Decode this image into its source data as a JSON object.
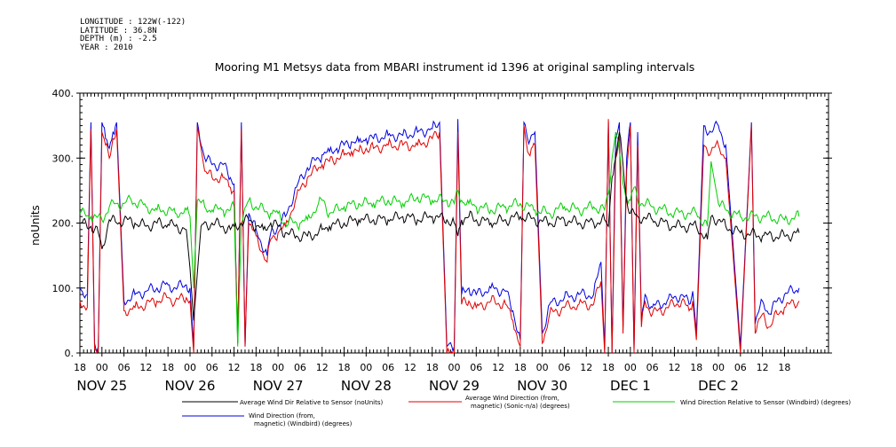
{
  "metadata": {
    "longitude": "LONGITUDE : 122W(-122)",
    "latitude": "LATITUDE : 36.8N",
    "depth": "DEPTH (m) : -2.5",
    "year": "YEAR : 2010"
  },
  "chart_data": {
    "type": "line",
    "title": "Mooring M1 Metsys data from MBARI instrument id 1396 at original sampling intervals",
    "ylabel": "noUnits",
    "ylim": [
      0,
      400
    ],
    "yticks": [
      "0.",
      "100.",
      "200.",
      "300.",
      "400."
    ],
    "yticks_values": [
      0,
      100,
      200,
      300,
      400
    ],
    "x_unit": "hours since Nov 25 00:00, 2010",
    "xlim": [
      -6,
      198
    ],
    "xtick_labels": [
      "18",
      "00",
      "06",
      "12",
      "18",
      "00",
      "06",
      "12",
      "18",
      "00",
      "06",
      "12",
      "18",
      "00",
      "06",
      "12",
      "18",
      "00",
      "06",
      "12",
      "18",
      "00",
      "06",
      "12",
      "18",
      "00",
      "06",
      "12",
      "18",
      "00",
      "06",
      "12",
      "18"
    ],
    "xtick_hours": [
      -6,
      0,
      6,
      12,
      18,
      24,
      30,
      36,
      42,
      48,
      54,
      60,
      66,
      72,
      78,
      84,
      90,
      96,
      102,
      108,
      114,
      120,
      126,
      132,
      138,
      144,
      150,
      156,
      162,
      168,
      174,
      180,
      186
    ],
    "date_labels": [
      {
        "text": "NOV 25",
        "hour": 0
      },
      {
        "text": "NOV 26",
        "hour": 24
      },
      {
        "text": "NOV 27",
        "hour": 48
      },
      {
        "text": "NOV 28",
        "hour": 72
      },
      {
        "text": "NOV 29",
        "hour": 96
      },
      {
        "text": "NOV 30",
        "hour": 120
      },
      {
        "text": "DEC  1",
        "hour": 144
      },
      {
        "text": "DEC  2",
        "hour": 168
      }
    ],
    "series": [
      {
        "name": "Average Wind Dir Relative to Sensor (noUnits)",
        "color": "#000000",
        "x": [
          -6,
          -3,
          -1,
          0,
          2,
          4,
          6,
          9,
          12,
          15,
          18,
          20,
          23,
          24,
          25,
          27,
          30,
          33,
          35,
          36,
          38,
          40,
          42,
          44,
          46,
          48,
          50,
          53,
          56,
          59,
          60,
          62,
          66,
          70,
          74,
          78,
          82,
          86,
          90,
          94,
          96,
          97,
          98,
          100,
          102,
          106,
          110,
          114,
          118,
          122,
          126,
          130,
          134,
          137,
          138,
          139,
          140,
          141,
          142,
          143,
          144,
          146,
          150,
          156,
          162,
          165,
          166,
          168,
          170,
          174,
          180,
          186,
          190
        ],
        "y": [
          200,
          195,
          185,
          160,
          205,
          200,
          205,
          200,
          195,
          200,
          198,
          195,
          190,
          130,
          50,
          195,
          200,
          195,
          190,
          195,
          200,
          205,
          195,
          190,
          200,
          195,
          185,
          180,
          180,
          185,
          190,
          195,
          200,
          205,
          205,
          205,
          210,
          205,
          210,
          205,
          200,
          180,
          205,
          210,
          205,
          200,
          205,
          210,
          205,
          200,
          205,
          200,
          200,
          205,
          195,
          270,
          300,
          340,
          290,
          235,
          215,
          210,
          205,
          195,
          195,
          175,
          210,
          205,
          195,
          185,
          180,
          180,
          185
        ]
      },
      {
        "name": "Average Wind Direction (from, magnetic) (Sonic-n/a) (degrees)",
        "color": "#e00000",
        "x": [
          -6,
          -4,
          -3,
          -2,
          -1,
          0,
          1,
          2,
          3,
          4,
          6,
          9,
          12,
          15,
          18,
          20,
          23,
          24,
          25,
          26,
          28,
          30,
          33,
          35,
          36,
          37,
          38,
          39,
          40,
          41,
          42,
          45,
          46,
          48,
          50,
          53,
          56,
          59,
          60,
          62,
          64,
          66,
          68,
          70,
          72,
          74,
          78,
          82,
          86,
          90,
          92,
          94,
          96,
          97,
          98,
          100,
          102,
          106,
          110,
          112,
          114,
          115,
          116,
          117,
          118,
          120,
          122,
          126,
          130,
          134,
          136,
          137,
          138,
          139,
          140,
          141,
          142,
          143,
          144,
          145,
          146,
          147,
          148,
          150,
          154,
          158,
          160,
          161,
          162,
          164,
          166,
          168,
          170,
          174,
          177,
          178,
          180,
          182,
          184,
          186,
          190
        ],
        "y": [
          80,
          70,
          345,
          5,
          5,
          340,
          320,
          300,
          330,
          345,
          65,
          70,
          75,
          80,
          85,
          80,
          85,
          80,
          0,
          350,
          280,
          270,
          270,
          255,
          250,
          20,
          345,
          10,
          200,
          190,
          180,
          140,
          175,
          185,
          195,
          240,
          270,
          285,
          290,
          295,
          300,
          305,
          310,
          310,
          315,
          315,
          320,
          320,
          320,
          330,
          340,
          0,
          0,
          340,
          75,
          80,
          70,
          80,
          75,
          50,
          10,
          350,
          310,
          315,
          320,
          15,
          60,
          70,
          75,
          75,
          110,
          0,
          360,
          0,
          300,
          340,
          30,
          280,
          350,
          0,
          320,
          40,
          80,
          60,
          70,
          80,
          65,
          80,
          20,
          320,
          310,
          320,
          300,
          0,
          350,
          30,
          60,
          40,
          60,
          70,
          80
        ]
      },
      {
        "name": "Wind Direction Relative to Sensor (Windbird) (degrees)",
        "color": "#00d000",
        "x": [
          -6,
          -3,
          0,
          2,
          4,
          6,
          8,
          10,
          12,
          15,
          18,
          20,
          23,
          24,
          25,
          26,
          28,
          30,
          33,
          35,
          36,
          37,
          38,
          40,
          42,
          46,
          48,
          50,
          54,
          56,
          59,
          60,
          62,
          66,
          70,
          74,
          78,
          82,
          86,
          90,
          94,
          96,
          97,
          98,
          100,
          102,
          106,
          110,
          114,
          118,
          122,
          126,
          130,
          134,
          137,
          138,
          139,
          140,
          141,
          142,
          143,
          144,
          145,
          146,
          150,
          156,
          162,
          165,
          166,
          168,
          170,
          174,
          180,
          186,
          190
        ],
        "y": [
          215,
          210,
          205,
          225,
          230,
          230,
          235,
          230,
          225,
          220,
          220,
          215,
          220,
          210,
          100,
          235,
          225,
          220,
          220,
          220,
          225,
          10,
          200,
          235,
          225,
          215,
          215,
          200,
          200,
          205,
          230,
          235,
          215,
          225,
          230,
          230,
          235,
          230,
          240,
          235,
          235,
          230,
          250,
          235,
          230,
          225,
          220,
          225,
          230,
          220,
          215,
          225,
          220,
          225,
          220,
          245,
          300,
          340,
          310,
          260,
          240,
          235,
          255,
          235,
          225,
          215,
          215,
          195,
          295,
          230,
          220,
          210,
          210,
          205,
          210
        ]
      },
      {
        "name": "Wind Direction (from, magnetic) (Windbird) (degrees)",
        "color": "#0000e0",
        "x": [
          -6,
          -4,
          -3,
          -2,
          -1,
          0,
          1,
          2,
          3,
          4,
          6,
          9,
          12,
          15,
          18,
          20,
          23,
          24,
          25,
          26,
          28,
          30,
          33,
          35,
          36,
          37,
          38,
          39,
          40,
          41,
          42,
          45,
          46,
          48,
          50,
          53,
          56,
          59,
          60,
          62,
          64,
          66,
          68,
          70,
          72,
          74,
          78,
          82,
          86,
          90,
          92,
          94,
          96,
          97,
          98,
          100,
          102,
          106,
          110,
          112,
          114,
          115,
          116,
          117,
          118,
          120,
          122,
          126,
          130,
          134,
          136,
          137,
          138,
          139,
          140,
          141,
          142,
          143,
          144,
          145,
          146,
          147,
          148,
          150,
          154,
          158,
          160,
          161,
          162,
          164,
          166,
          168,
          170,
          174,
          177,
          178,
          180,
          182,
          184,
          186,
          190
        ],
        "y": [
          100,
          90,
          355,
          15,
          10,
          355,
          330,
          315,
          340,
          355,
          80,
          90,
          95,
          100,
          105,
          100,
          105,
          100,
          10,
          355,
          300,
          290,
          290,
          270,
          260,
          15,
          355,
          10,
          215,
          200,
          190,
          150,
          185,
          195,
          210,
          255,
          285,
          300,
          305,
          310,
          315,
          320,
          325,
          325,
          330,
          330,
          335,
          335,
          340,
          345,
          355,
          10,
          10,
          360,
          90,
          100,
          90,
          100,
          95,
          65,
          20,
          355,
          330,
          335,
          340,
          30,
          75,
          85,
          90,
          90,
          140,
          5,
          355,
          5,
          330,
          355,
          40,
          300,
          355,
          5,
          340,
          50,
          90,
          70,
          80,
          90,
          75,
          95,
          30,
          350,
          340,
          350,
          320,
          10,
          355,
          45,
          80,
          60,
          80,
          90,
          100
        ]
      }
    ],
    "legend": [
      {
        "label": "Average Wind Dir Relative to Sensor (noUnits)",
        "color": "#000000"
      },
      {
        "label_lines": [
          "Average Wind Direction (from,",
          "magnetic) (Sonic-n/a) (degrees)"
        ],
        "color": "#e00000"
      },
      {
        "label": "Wind Direction Relative to Sensor (Windbird) (degrees)",
        "color": "#00d000"
      },
      {
        "label_lines": [
          "Wind Direction (from,",
          "magnetic) (Windbird) (degrees)"
        ],
        "color": "#0000e0"
      }
    ],
    "legend_placement": "bottom",
    "grid": false
  }
}
